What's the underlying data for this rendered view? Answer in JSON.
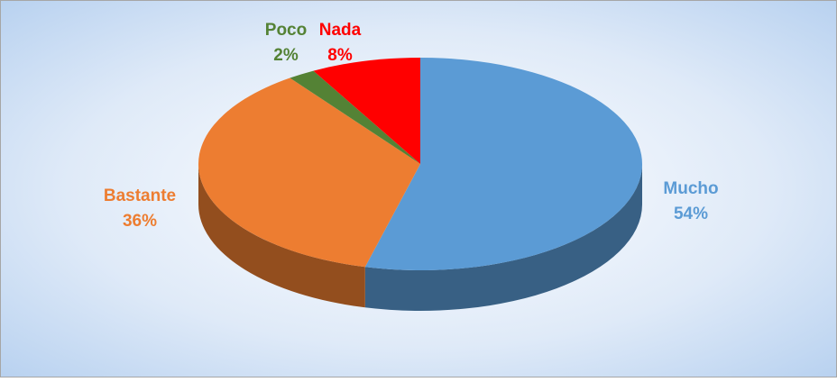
{
  "chart_data": {
    "type": "pie",
    "categories": [
      "Mucho",
      "Bastante",
      "Poco",
      "Nada"
    ],
    "values": [
      54,
      36,
      2,
      8
    ],
    "value_labels": [
      "54%",
      "36%",
      "2%",
      "8%"
    ],
    "colors": [
      "#5b9bd5",
      "#ed7d31",
      "#548235",
      "#ff0000"
    ]
  }
}
